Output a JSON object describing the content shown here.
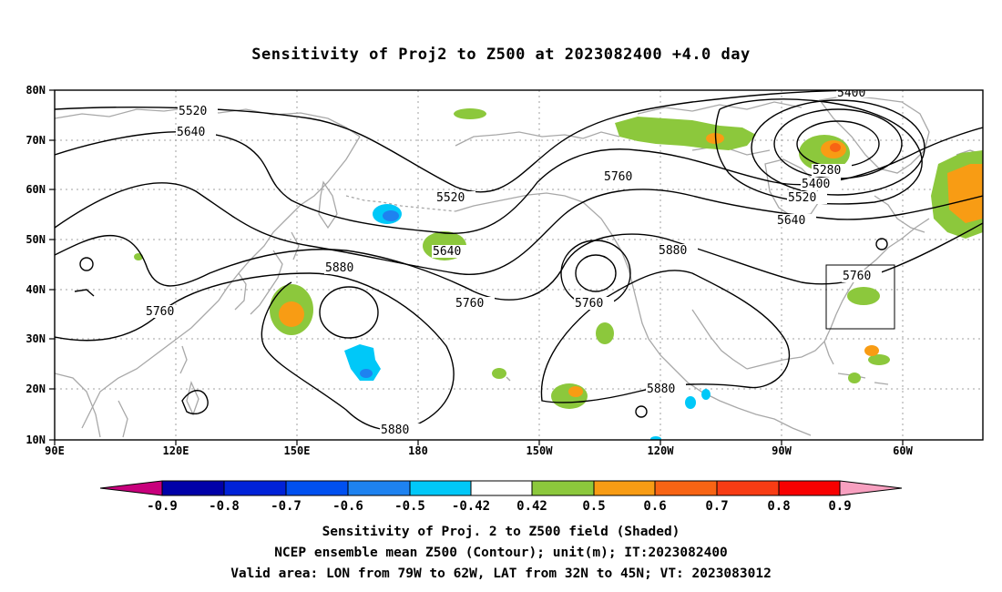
{
  "title": "Sensitivity of Proj2 to Z500 at 2023082400 +4.0 day",
  "lat_labels": [
    "80N",
    "70N",
    "60N",
    "50N",
    "40N",
    "30N",
    "20N",
    "10N"
  ],
  "lon_labels": [
    "90E",
    "120E",
    "150E",
    "180",
    "150W",
    "120W",
    "90W",
    "60W"
  ],
  "contour_labels": [
    "5520",
    "5640",
    "5520",
    "5640",
    "5760",
    "5400",
    "5280",
    "5400",
    "5520",
    "5640",
    "5880",
    "5880",
    "5760",
    "5760",
    "5760",
    "5880",
    "5880",
    "5760"
  ],
  "colorbar": {
    "ticks": [
      "-0.9",
      "-0.8",
      "-0.7",
      "-0.6",
      "-0.5",
      "-0.42",
      "0.42",
      "0.5",
      "0.6",
      "0.7",
      "0.8",
      "0.9"
    ],
    "colors": [
      "#c8007c",
      "#0000a8",
      "#0022d8",
      "#0050f0",
      "#1e82f0",
      "#00c8f8",
      "#ffffff",
      "#8cc83c",
      "#f89c14",
      "#f86414",
      "#f83c14",
      "#f80000",
      "#f8a0c0"
    ]
  },
  "shading_colors": {
    "green": "#8cc83c",
    "orange": "#f89c14",
    "dark_orange": "#f86414",
    "light_blue": "#00c8f8",
    "blue": "#1e82f0",
    "dark_blue": "#0050f0"
  },
  "captions": [
    "Sensitivity of Proj. 2 to Z500 field (Shaded)",
    "NCEP ensemble mean Z500 (Contour); unit(m); IT:2023082400",
    "Valid area: LON from 79W to 62W, LAT from 32N to 45N; VT: 2023083012"
  ]
}
